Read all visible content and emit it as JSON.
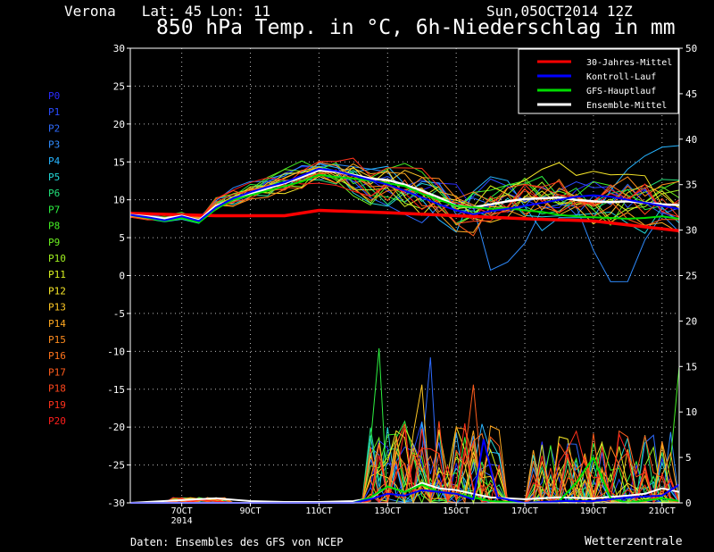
{
  "header": {
    "location": "Verona   Lat: 45 Lon: 11",
    "date": "Sun,05OCT2014 12Z",
    "title": "850 hPa Temp. in °C, 6h-Niederschlag in mm"
  },
  "footer": {
    "source": "Daten: Ensembles des GFS von NCEP",
    "brand": "Wetterzentrale"
  },
  "legend_box": [
    {
      "label": "30-Jahres-Mittel",
      "color": "#ff0000"
    },
    {
      "label": "Kontroll-Lauf",
      "color": "#0000ff"
    },
    {
      "label": "GFS-Hauptlauf",
      "color": "#00dd00"
    },
    {
      "label": "Ensemble-Mittel",
      "color": "#ffffff"
    }
  ],
  "members": [
    {
      "label": "P0",
      "color": "#2a2aff"
    },
    {
      "label": "P1",
      "color": "#2a4cff"
    },
    {
      "label": "P2",
      "color": "#2e6bff"
    },
    {
      "label": "P3",
      "color": "#2f8cff"
    },
    {
      "label": "P4",
      "color": "#26b4ff"
    },
    {
      "label": "P5",
      "color": "#22d6d6"
    },
    {
      "label": "P6",
      "color": "#22e07a"
    },
    {
      "label": "P7",
      "color": "#2cf040"
    },
    {
      "label": "P8",
      "color": "#44f024"
    },
    {
      "label": "P9",
      "color": "#6cf020"
    },
    {
      "label": "P10",
      "color": "#a0f020"
    },
    {
      "label": "P11",
      "color": "#d8f020"
    },
    {
      "label": "P12",
      "color": "#f8e828"
    },
    {
      "label": "P13",
      "color": "#ffc824"
    },
    {
      "label": "P14",
      "color": "#ffa820"
    },
    {
      "label": "P15",
      "color": "#ff8c1e"
    },
    {
      "label": "P16",
      "color": "#ff741c"
    },
    {
      "label": "P17",
      "color": "#ff5c1c"
    },
    {
      "label": "P18",
      "color": "#ff461c"
    },
    {
      "label": "P19",
      "color": "#ff321c"
    },
    {
      "label": "P20",
      "color": "#ff1e1c"
    }
  ],
  "chart_data": {
    "type": "line",
    "title": "850 hPa Temp. in °C, 6h-Niederschlag in mm",
    "x_ticks": [
      "7OCT",
      "9OCT",
      "11OCT",
      "13OCT",
      "15OCT",
      "17OCT",
      "19OCT",
      "21OCT"
    ],
    "x_year_label": "2014",
    "x_range_days": [
      5.5,
      21.5
    ],
    "y_left": {
      "ticks": [
        30,
        25,
        20,
        15,
        10,
        5,
        0,
        -5,
        -10,
        -15,
        -20,
        -25,
        -30
      ],
      "range": [
        -30,
        30
      ],
      "unit": "°C"
    },
    "y_right": {
      "ticks": [
        50,
        45,
        40,
        35,
        30,
        25,
        20,
        15,
        10,
        5,
        0
      ],
      "range": [
        0,
        50
      ],
      "unit": "mm"
    },
    "grid": true,
    "legend_position": "top-right",
    "temperature_series": [
      {
        "name": "30-Jahres-Mittel",
        "color": "#ff0000",
        "x": [
          5.5,
          8,
          10,
          11,
          13,
          15,
          17,
          19,
          21.5
        ],
        "y": [
          8.2,
          7.9,
          7.9,
          8.6,
          8.3,
          7.9,
          7.5,
          7.2,
          5.9
        ]
      },
      {
        "name": "Ensemble-Mittel",
        "color": "#ffffff",
        "x": [
          5.5,
          6,
          6.5,
          7,
          7.5,
          8,
          8.5,
          9,
          9.5,
          10,
          10.5,
          11,
          11.5,
          12,
          12.5,
          13,
          13.5,
          14,
          14.5,
          15,
          15.5,
          16,
          16.5,
          17,
          17.5,
          18,
          18.5,
          19,
          19.5,
          20,
          20.5,
          21,
          21.5
        ],
        "y": [
          8.0,
          7.8,
          7.5,
          7.9,
          7.3,
          9.2,
          10.0,
          10.8,
          11.5,
          12.2,
          13.0,
          13.9,
          13.7,
          13.3,
          12.8,
          12.6,
          12.0,
          11.2,
          10.3,
          9.2,
          9.0,
          9.4,
          9.8,
          10.1,
          10.2,
          10.3,
          10.0,
          9.8,
          9.7,
          9.8,
          9.6,
          9.4,
          9.3
        ]
      },
      {
        "name": "GFS-Hauptlauf",
        "color": "#00dd00",
        "x": [
          5.5,
          6,
          6.5,
          7,
          7.5,
          8,
          8.5,
          9,
          9.5,
          10,
          10.5,
          11,
          11.5,
          12,
          12.5,
          13,
          13.5,
          14,
          14.5,
          15,
          15.5,
          16,
          16.5,
          17,
          17.5,
          18,
          18.5,
          19,
          19.5,
          20,
          20.5,
          21,
          21.5
        ],
        "y": [
          8.0,
          7.6,
          7.2,
          7.6,
          7.0,
          8.8,
          10.0,
          10.6,
          11.2,
          11.8,
          12.4,
          13.3,
          13.0,
          12.8,
          12.5,
          12.2,
          11.8,
          10.8,
          10.0,
          9.2,
          9.0,
          8.8,
          8.9,
          8.6,
          8.4,
          8.0,
          7.8,
          7.7,
          7.6,
          7.5,
          7.6,
          7.8,
          7.5
        ]
      },
      {
        "name": "Kontroll-Lauf",
        "color": "#0000ff",
        "x": [
          5.5,
          6,
          6.5,
          7,
          7.5,
          8,
          8.5,
          9,
          9.5,
          10,
          10.5,
          11,
          11.5,
          12,
          12.5,
          13,
          13.5,
          14,
          14.5,
          15,
          15.5,
          16,
          16.5,
          17,
          17.5,
          18,
          18.5,
          19,
          19.5,
          20,
          20.5,
          21,
          21.5
        ],
        "y": [
          8.0,
          7.7,
          7.3,
          7.8,
          7.2,
          9.0,
          10.2,
          11.0,
          11.7,
          12.3,
          13.2,
          14.1,
          13.8,
          13.2,
          12.6,
          12.0,
          11.2,
          10.3,
          9.4,
          8.6,
          8.1,
          8.5,
          8.8,
          9.2,
          9.6,
          10.0,
          10.4,
          10.6,
          10.4,
          10.0,
          9.6,
          9.2,
          8.8
        ]
      }
    ],
    "precip_series": [
      {
        "name": "Ensemble-Mittel",
        "color": "#ffffff",
        "x": [
          5.5,
          7,
          8,
          9,
          10,
          11,
          12,
          12.5,
          13,
          13.5,
          14,
          14.5,
          15,
          15.5,
          16,
          17,
          18,
          19,
          20,
          20.5,
          21,
          21.5
        ],
        "y": [
          0,
          0.3,
          0.5,
          0.2,
          0.1,
          0.1,
          0.2,
          0.5,
          1.8,
          1.2,
          2.2,
          1.6,
          1.4,
          1.0,
          0.6,
          0.4,
          0.6,
          0.5,
          0.8,
          1.0,
          1.6,
          1.2
        ]
      },
      {
        "name": "GFS-Hauptlauf",
        "color": "#00dd00",
        "x": [
          5.5,
          12,
          12.5,
          13,
          13.5,
          14,
          14.5,
          15,
          15.5,
          16,
          17,
          18,
          18.5,
          19,
          19.5,
          20,
          21,
          21.5
        ],
        "y": [
          0,
          0,
          0.6,
          1.8,
          1.2,
          2.0,
          1.2,
          1.0,
          0.6,
          0.2,
          0,
          0.2,
          2.2,
          5.0,
          0.5,
          0,
          0.5,
          0.2
        ]
      },
      {
        "name": "Kontroll-Lauf",
        "color": "#0000ff",
        "x": [
          5.5,
          12,
          12.5,
          13,
          13.5,
          14,
          14.5,
          15,
          15.5,
          15.8,
          16.2,
          17,
          18,
          19,
          20,
          21,
          21.5
        ],
        "y": [
          0,
          0,
          0.4,
          1.0,
          0.8,
          1.4,
          1.2,
          1.0,
          0.4,
          7.0,
          0.6,
          0,
          0.2,
          0.2,
          0.6,
          0.8,
          2.0
        ]
      }
    ]
  }
}
